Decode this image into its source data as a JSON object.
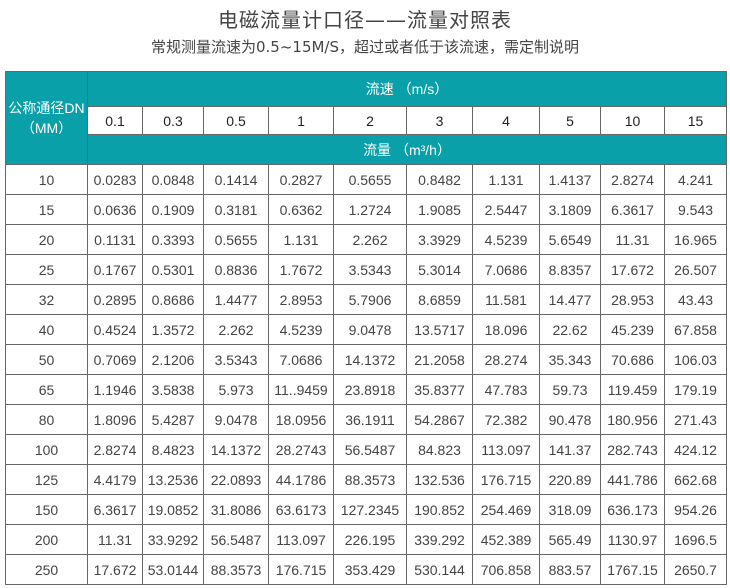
{
  "title": "电磁流量计口径——流量对照表",
  "subtitle": "常规测量流速为0.5~15M/S，超过或者低于该流速，需定制说明",
  "colors": {
    "header": "#0aa0aa"
  },
  "table": {
    "dn_header_line1": "公称通径DN",
    "dn_header_line2": "（MM）",
    "velocity_header": "流速 （m/s）",
    "flow_header": "流量 （m³/h）",
    "velocities": [
      "0.1",
      "0.3",
      "0.5",
      "1",
      "2",
      "3",
      "4",
      "5",
      "10",
      "15"
    ],
    "rows": [
      {
        "dn": "10",
        "values": [
          "0.0283",
          "0.0848",
          "0.1414",
          "0.2827",
          "0.5655",
          "0.8482",
          "1.131",
          "1.4137",
          "2.8274",
          "4.241"
        ]
      },
      {
        "dn": "15",
        "values": [
          "0.0636",
          "0.1909",
          "0.3181",
          "0.6362",
          "1.2724",
          "1.9085",
          "2.5447",
          "3.1809",
          "6.3617",
          "9.543"
        ]
      },
      {
        "dn": "20",
        "values": [
          "0.1131",
          "0.3393",
          "0.5655",
          "1.131",
          "2.262",
          "3.3929",
          "4.5239",
          "5.6549",
          "11.31",
          "16.965"
        ]
      },
      {
        "dn": "25",
        "values": [
          "0.1767",
          "0.5301",
          "0.8836",
          "1.7672",
          "3.5343",
          "5.3014",
          "7.0686",
          "8.8357",
          "17.672",
          "26.507"
        ]
      },
      {
        "dn": "32",
        "values": [
          "0.2895",
          "0.8686",
          "1.4477",
          "2.8953",
          "5.7906",
          "8.6859",
          "11.581",
          "14.477",
          "28.953",
          "43.43"
        ]
      },
      {
        "dn": "40",
        "values": [
          "0.4524",
          "1.3572",
          "2.262",
          "4.5239",
          "9.0478",
          "13.5717",
          "18.096",
          "22.62",
          "45.239",
          "67.858"
        ]
      },
      {
        "dn": "50",
        "values": [
          "0.7069",
          "2.1206",
          "3.5343",
          "7.0686",
          "14.1372",
          "21.2058",
          "28.274",
          "35.343",
          "70.686",
          "106.03"
        ]
      },
      {
        "dn": "65",
        "values": [
          "1.1946",
          "3.5838",
          "5.973",
          "11..9459",
          "23.8918",
          "35.8377",
          "47.783",
          "59.73",
          "119.459",
          "179.19"
        ]
      },
      {
        "dn": "80",
        "values": [
          "1.8096",
          "5.4287",
          "9.0478",
          "18.0956",
          "36.1911",
          "54.2867",
          "72.382",
          "90.478",
          "180.956",
          "271.43"
        ]
      },
      {
        "dn": "100",
        "values": [
          "2.8274",
          "8.4823",
          "14.1372",
          "28.2743",
          "56.5487",
          "84.823",
          "113.097",
          "141.37",
          "282.743",
          "424.12"
        ]
      },
      {
        "dn": "125",
        "values": [
          "4.4179",
          "13.2536",
          "22.0893",
          "44.1786",
          "88.3573",
          "132.536",
          "176.715",
          "220.89",
          "441.786",
          "662.68"
        ]
      },
      {
        "dn": "150",
        "values": [
          "6.3617",
          "19.0852",
          "31.8086",
          "63.6173",
          "127.2345",
          "190.852",
          "254.469",
          "318.09",
          "636.173",
          "954.26"
        ]
      },
      {
        "dn": "200",
        "values": [
          "11.31",
          "33.9292",
          "56.5487",
          "113.097",
          "226.195",
          "339.292",
          "452.389",
          "565.49",
          "1130.97",
          "1696.5"
        ]
      },
      {
        "dn": "250",
        "values": [
          "17.672",
          "53.0144",
          "88.3573",
          "176.715",
          "353.429",
          "530.144",
          "706.858",
          "883.57",
          "1767.15",
          "2650.7"
        ]
      }
    ]
  }
}
